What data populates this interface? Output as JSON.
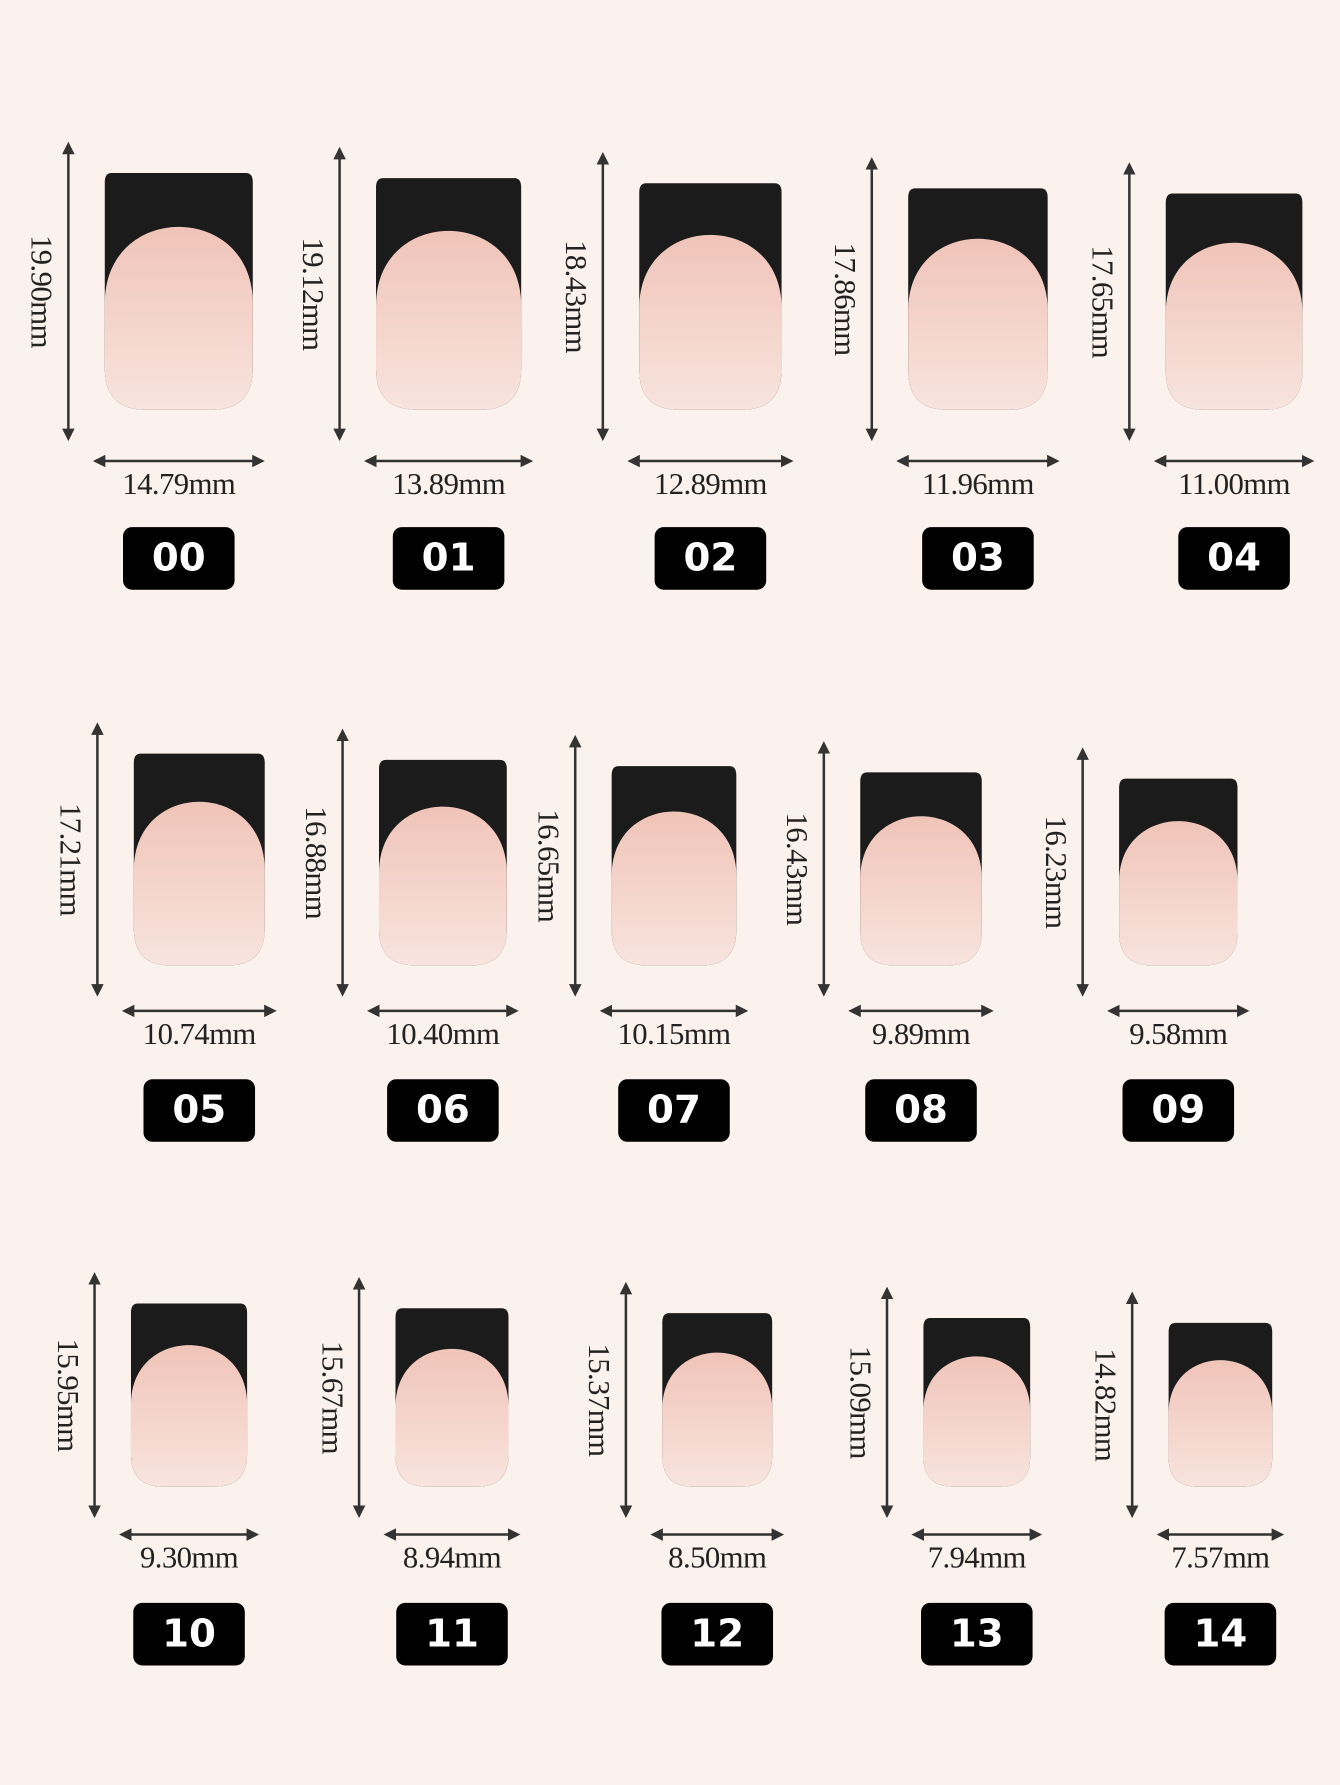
{
  "nails": [
    {
      "label": "00",
      "height": "19.90mm",
      "width": "14.79mm"
    },
    {
      "label": "01",
      "height": "19.12mm",
      "width": "13.89mm"
    },
    {
      "label": "02",
      "height": "18.43mm",
      "width": "12.89mm"
    },
    {
      "label": "03",
      "height": "17.86mm",
      "width": "11.96mm"
    },
    {
      "label": "04",
      "height": "17.65mm",
      "width": "11.00mm"
    },
    {
      "label": "05",
      "height": "17.21mm",
      "width": "10.74mm"
    },
    {
      "label": "06",
      "height": "16.88mm",
      "width": "10.40mm"
    },
    {
      "label": "07",
      "height": "16.65mm",
      "width": "10.15mm"
    },
    {
      "label": "08",
      "height": "16.43mm",
      "width": "9.89mm"
    },
    {
      "label": "09",
      "height": "16.23mm",
      "width": "9.58mm"
    },
    {
      "label": "10",
      "height": "15.95mm",
      "width": "9.30mm"
    },
    {
      "label": "11",
      "height": "15.67mm",
      "width": "8.94mm"
    },
    {
      "label": "12",
      "height": "15.37mm",
      "width": "8.50mm"
    },
    {
      "label": "13",
      "height": "15.09mm",
      "width": "7.94mm"
    },
    {
      "label": "14",
      "height": "14.82mm",
      "width": "7.57mm"
    }
  ]
}
